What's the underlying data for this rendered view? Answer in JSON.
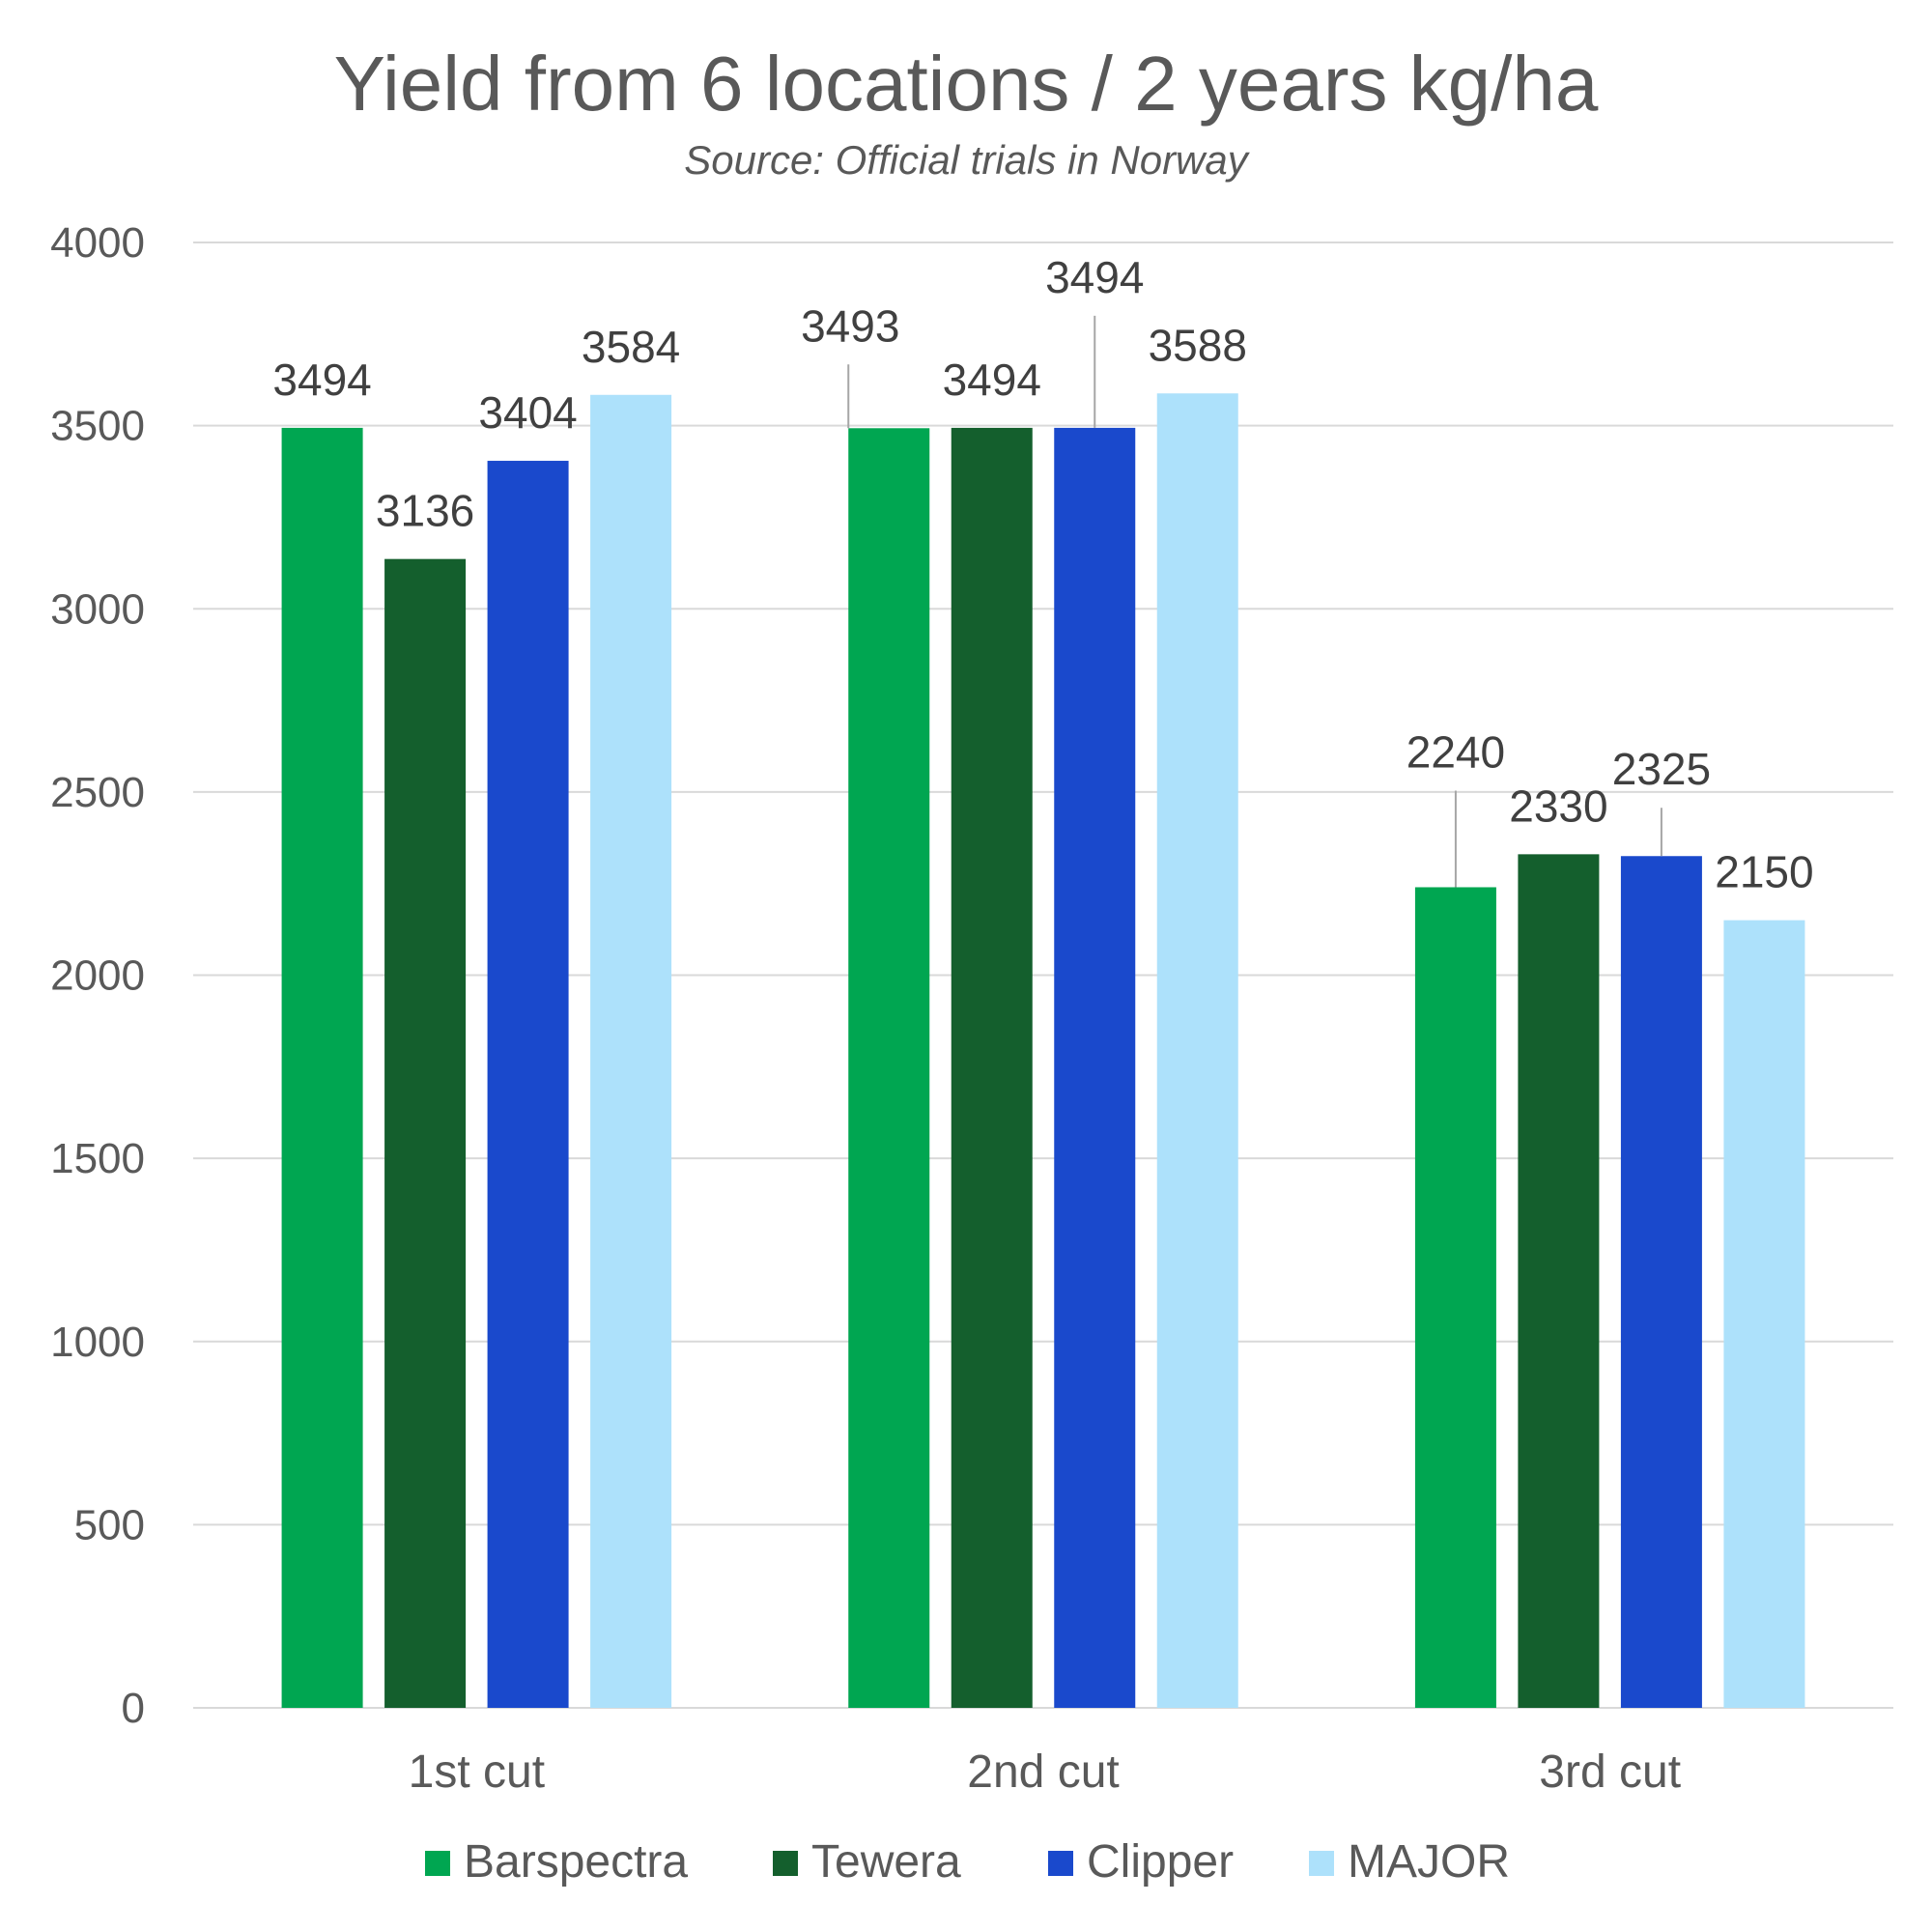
{
  "chart_data": {
    "type": "bar",
    "title": "Yield from 6 locations / 2 years kg/ha",
    "subtitle": "Source: Official trials in Norway",
    "categories": [
      "1st cut",
      "2nd cut",
      "3rd cut"
    ],
    "series": [
      {
        "name": "Barspectra",
        "color": "#00a651",
        "values": [
          3494,
          3493,
          2240
        ]
      },
      {
        "name": "Tewera",
        "color": "#145f2d",
        "values": [
          3136,
          3494,
          2330
        ]
      },
      {
        "name": "Clipper",
        "color": "#1a49cc",
        "values": [
          3404,
          3494,
          2325
        ]
      },
      {
        "name": "MAJOR",
        "color": "#ade1fb",
        "values": [
          3584,
          3588,
          2150
        ]
      }
    ],
    "yticks": [
      "0",
      "500",
      "1000",
      "1500",
      "2000",
      "2500",
      "3000",
      "3500",
      "4000"
    ],
    "ylim": [
      0,
      4000
    ],
    "grid": true,
    "legend_position": "bottom",
    "xlabel": "",
    "ylabel": ""
  }
}
